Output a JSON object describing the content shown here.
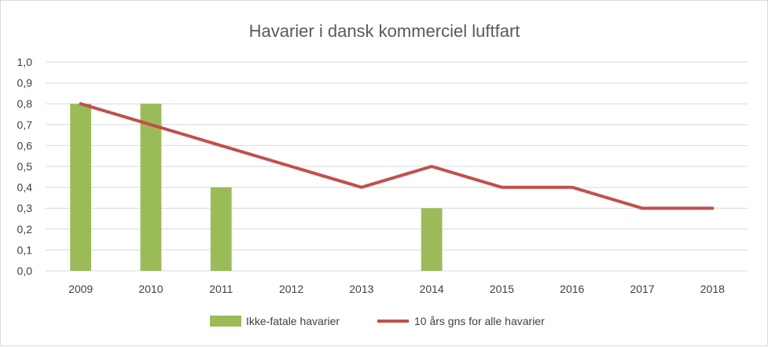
{
  "chart_data": {
    "type": "bar",
    "title": "Havarier i dansk kommerciel luftfart",
    "xlabel": "",
    "ylabel": "",
    "categories": [
      "2009",
      "2010",
      "2011",
      "2012",
      "2013",
      "2014",
      "2015",
      "2016",
      "2017",
      "2018"
    ],
    "ylim": [
      0,
      1.0
    ],
    "y_ticks": [
      {
        "value": 0,
        "label": "0,0"
      },
      {
        "value": 0.1,
        "label": "0,1"
      },
      {
        "value": 0.2,
        "label": "0,2"
      },
      {
        "value": 0.3,
        "label": "0,3"
      },
      {
        "value": 0.4,
        "label": "0,4"
      },
      {
        "value": 0.5,
        "label": "0,5"
      },
      {
        "value": 0.6,
        "label": "0,6"
      },
      {
        "value": 0.7,
        "label": "0,7"
      },
      {
        "value": 0.8,
        "label": "0,8"
      },
      {
        "value": 0.9,
        "label": "0,9"
      },
      {
        "value": 1.0,
        "label": "1,0"
      }
    ],
    "grid": true,
    "legend_position": "bottom",
    "series": [
      {
        "name": "Ikke-fatale havarier",
        "type": "bar",
        "color": "#9bbb59",
        "values": [
          0.8,
          0.8,
          0.4,
          0,
          0,
          0.3,
          0,
          0,
          0,
          0
        ]
      },
      {
        "name": "10 års gns for alle havarier",
        "type": "line",
        "color": "#c0504d",
        "values": [
          0.8,
          0.7,
          0.6,
          0.5,
          0.4,
          0.5,
          0.4,
          0.4,
          0.3,
          0.3
        ]
      }
    ]
  }
}
